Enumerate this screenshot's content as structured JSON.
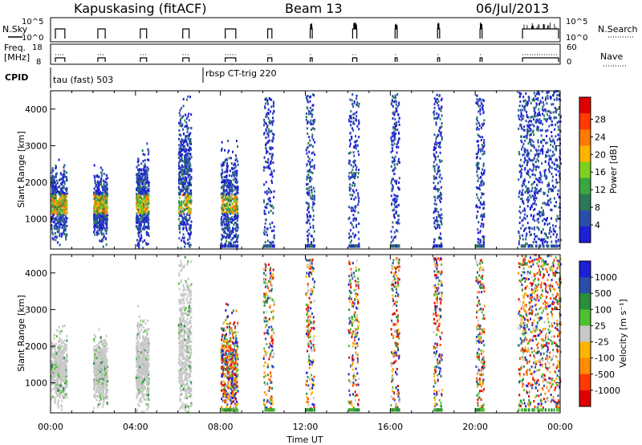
{
  "header": {
    "title": "Kapuskasing (fitACF)",
    "beam": "Beam 13",
    "date": "06/Jul/2013"
  },
  "panels": {
    "nsky": {
      "left_label": "N.Sky",
      "right_label": "N.Search",
      "left_ticks": [
        "10^5",
        "10^0"
      ],
      "right_ticks": [
        "10^5",
        "10^0"
      ]
    },
    "freq": {
      "left_label_1": "Freq.",
      "left_label_2": "[MHz]",
      "right_label": "Nave",
      "left_ticks": [
        "18",
        "8"
      ],
      "right_ticks": [
        "60",
        "0"
      ]
    },
    "cpid": {
      "label": "CPID",
      "segments": [
        {
          "text": "tau (fast) 503",
          "start_hour": 0
        },
        {
          "text": "rbsp CT-trig 220",
          "start_hour": 6.5
        }
      ]
    }
  },
  "colors": {
    "power": [
      "#1f1fd6",
      "#2a4fa8",
      "#2b7a57",
      "#3aa640",
      "#7fd020",
      "#ffb400",
      "#ff7a00",
      "#ff3a00",
      "#e00000"
    ],
    "velocity": [
      "#e00000",
      "#ff3a00",
      "#ff8c00",
      "#ffb400",
      "#c8c8c8",
      "#4fc030",
      "#2a8f3a",
      "#2a4fa8",
      "#1f1fd6"
    ],
    "velocity_dominant": "#c8c8c8"
  },
  "chart_data": [
    {
      "type": "heatmap",
      "name": "power",
      "ylabel": "Slant Range [km]",
      "xlabel": "Time UT",
      "ylim": [
        180,
        4500
      ],
      "yticks": [
        1000,
        2000,
        3000,
        4000
      ],
      "xlim": [
        0,
        24
      ],
      "xticks": [
        "00:00",
        "04:00",
        "08:00",
        "12:00",
        "16:00",
        "20:00",
        "00:00"
      ],
      "colorbar": {
        "label": "Power [dB]",
        "ticks": [
          4,
          8,
          12,
          16,
          20,
          24,
          28
        ]
      },
      "bursts": [
        {
          "t0": 0.0,
          "t1": 0.75,
          "r0": 600,
          "r1": 2200,
          "peak_db": 22
        },
        {
          "t0": 2.0,
          "t1": 2.65,
          "r0": 600,
          "r1": 2100,
          "peak_db": 22
        },
        {
          "t0": 4.0,
          "t1": 4.6,
          "r0": 500,
          "r1": 2500,
          "peak_db": 22
        },
        {
          "t0": 6.0,
          "t1": 6.6,
          "r0": 350,
          "r1": 3800,
          "peak_db": 20
        },
        {
          "t0": 8.0,
          "t1": 8.8,
          "r0": 250,
          "r1": 2600,
          "peak_db": 14
        },
        {
          "t0": 10.0,
          "t1": 10.5,
          "r0": 250,
          "r1": 4300,
          "peak_db": 8
        },
        {
          "t0": 12.0,
          "t1": 12.4,
          "r0": 250,
          "r1": 4400,
          "peak_db": 8
        },
        {
          "t0": 14.0,
          "t1": 14.5,
          "r0": 250,
          "r1": 4400,
          "peak_db": 8
        },
        {
          "t0": 16.0,
          "t1": 16.4,
          "r0": 250,
          "r1": 4400,
          "peak_db": 8
        },
        {
          "t0": 18.0,
          "t1": 18.4,
          "r0": 250,
          "r1": 4400,
          "peak_db": 8
        },
        {
          "t0": 20.0,
          "t1": 20.4,
          "r0": 250,
          "r1": 4400,
          "peak_db": 8
        },
        {
          "t0": 22.0,
          "t1": 24.0,
          "r0": 250,
          "r1": 4500,
          "peak_db": 8
        }
      ]
    },
    {
      "type": "heatmap",
      "name": "velocity",
      "ylabel": "Slant Range [km]",
      "xlabel": "Time UT",
      "ylim": [
        180,
        4500
      ],
      "yticks": [
        1000,
        2000,
        3000,
        4000
      ],
      "xlim": [
        0,
        24
      ],
      "xticks": [
        "00:00",
        "04:00",
        "08:00",
        "12:00",
        "16:00",
        "20:00",
        "00:00"
      ],
      "colorbar": {
        "label": "Velocity [m s⁻¹]",
        "ticks": [
          1000,
          500,
          100,
          25,
          -25,
          -100,
          -500,
          -1000
        ]
      },
      "bursts": [
        {
          "t0": 0.0,
          "t1": 0.75,
          "r0": 600,
          "r1": 2200,
          "dominant": "ground"
        },
        {
          "t0": 2.0,
          "t1": 2.65,
          "r0": 600,
          "r1": 2100,
          "dominant": "ground"
        },
        {
          "t0": 4.0,
          "t1": 4.6,
          "r0": 500,
          "r1": 2500,
          "dominant": "ground"
        },
        {
          "t0": 6.0,
          "t1": 6.6,
          "r0": 350,
          "r1": 3800,
          "dominant": "ground"
        },
        {
          "t0": 8.0,
          "t1": 8.8,
          "r0": 250,
          "r1": 2600,
          "dominant": "mixed"
        },
        {
          "t0": 10.0,
          "t1": 10.5,
          "r0": 250,
          "r1": 4300,
          "dominant": "mixed"
        },
        {
          "t0": 12.0,
          "t1": 12.4,
          "r0": 250,
          "r1": 4400,
          "dominant": "mixed"
        },
        {
          "t0": 14.0,
          "t1": 14.5,
          "r0": 250,
          "r1": 4400,
          "dominant": "mixed"
        },
        {
          "t0": 16.0,
          "t1": 16.4,
          "r0": 250,
          "r1": 4400,
          "dominant": "mixed"
        },
        {
          "t0": 18.0,
          "t1": 18.4,
          "r0": 250,
          "r1": 4400,
          "dominant": "mixed"
        },
        {
          "t0": 20.0,
          "t1": 20.4,
          "r0": 250,
          "r1": 4400,
          "dominant": "mixed"
        },
        {
          "t0": 22.0,
          "t1": 24.0,
          "r0": 250,
          "r1": 4500,
          "dominant": "mixed"
        }
      ]
    }
  ]
}
